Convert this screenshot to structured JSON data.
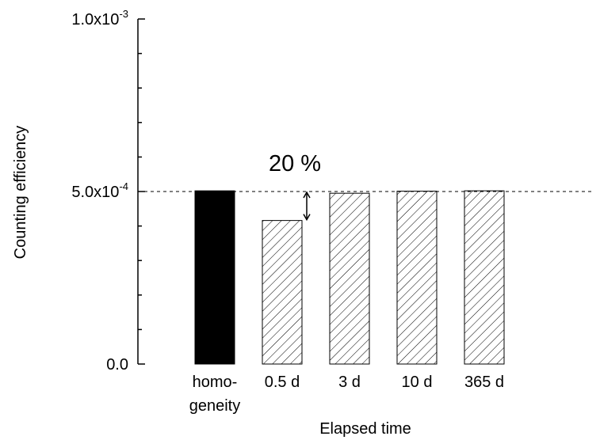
{
  "chart_data": {
    "type": "bar",
    "categories": [
      [
        "homo-",
        "geneity"
      ],
      [
        "0.5 d"
      ],
      [
        "3 d"
      ],
      [
        "10 d"
      ],
      [
        "365 d"
      ]
    ],
    "values": [
      0.000502,
      0.000416,
      0.000495,
      0.000501,
      0.000502
    ],
    "bar_styles": [
      "solid",
      "hatched",
      "hatched",
      "hatched",
      "hatched"
    ],
    "xlabel": "Elapsed time",
    "ylabel": "Counting efficiency",
    "ylim": [
      0,
      0.001
    ],
    "y_tick_labels": [
      {
        "value": 0,
        "mantissa": "0.0",
        "exp": ""
      },
      {
        "value": 0.0005,
        "mantissa": "5.0x10",
        "exp": "-4"
      },
      {
        "value": 0.001,
        "mantissa": "1.0x10",
        "exp": "-3"
      }
    ],
    "y_minor_step": 0.0001,
    "reference_line": 0.0005,
    "annotation": {
      "text": "20 %",
      "from_value": 0.0005,
      "to_value": 0.000416,
      "category_index": 1
    },
    "grid": false,
    "colors": {
      "solid": "#000000",
      "hatch": "#000000",
      "background": "#ffffff"
    }
  }
}
